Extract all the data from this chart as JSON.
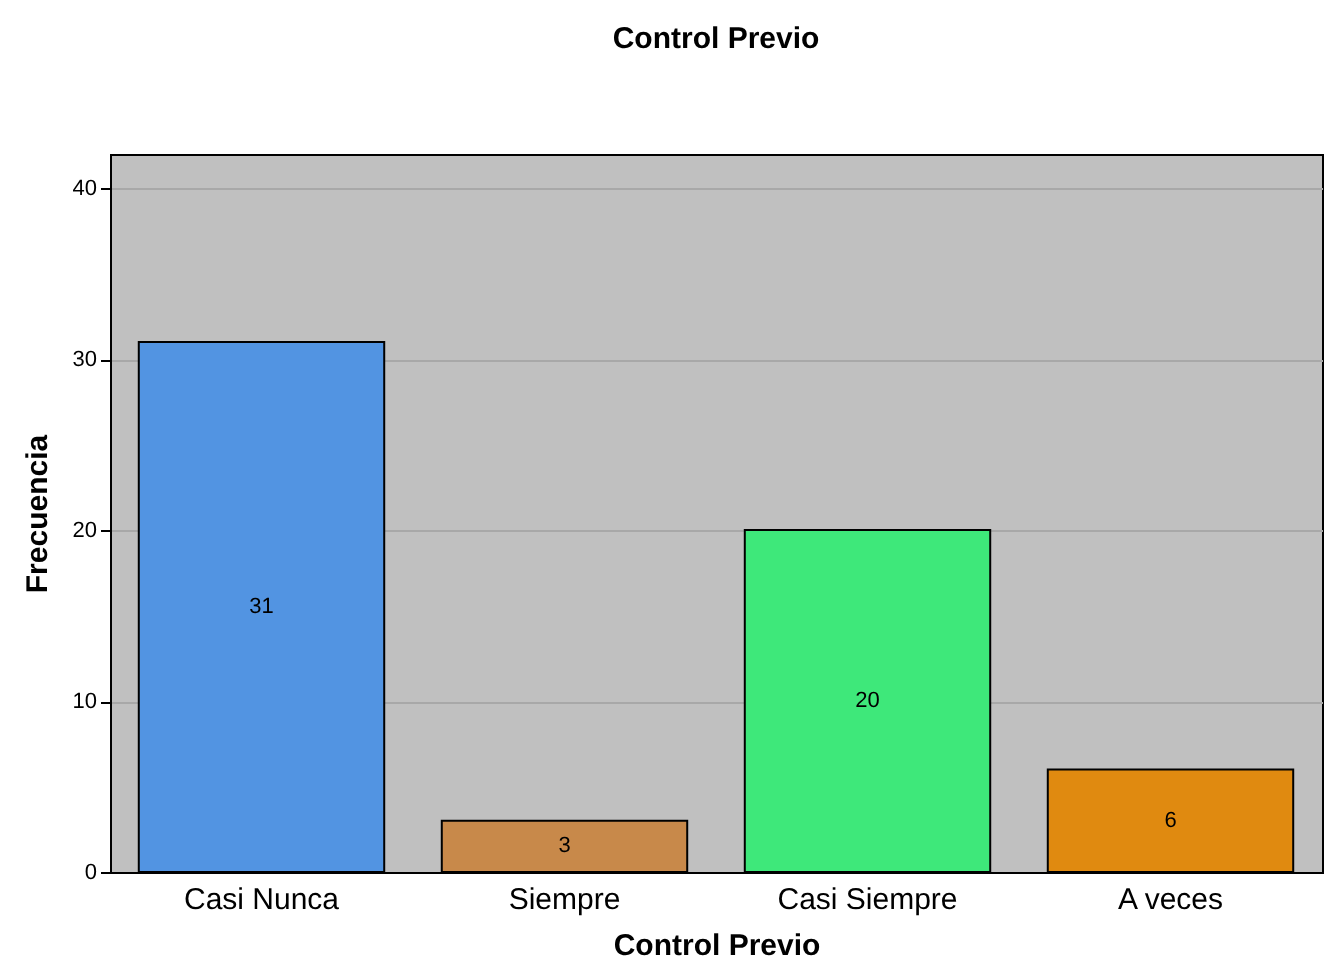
{
  "chart_data": {
    "type": "bar",
    "title": "Control Previo",
    "xlabel": "Control Previo",
    "ylabel": "Frecuencia",
    "categories": [
      "Casi Nunca",
      "Siempre",
      "Casi Siempre",
      "A veces"
    ],
    "values": [
      31,
      3,
      20,
      6
    ],
    "colors": [
      "#5294e2",
      "#c8894a",
      "#3ee87a",
      "#e08a10"
    ],
    "ylim": [
      0,
      42
    ],
    "yticks": [
      0,
      10,
      20,
      30,
      40
    ],
    "grid": "y",
    "data_labels": true
  }
}
